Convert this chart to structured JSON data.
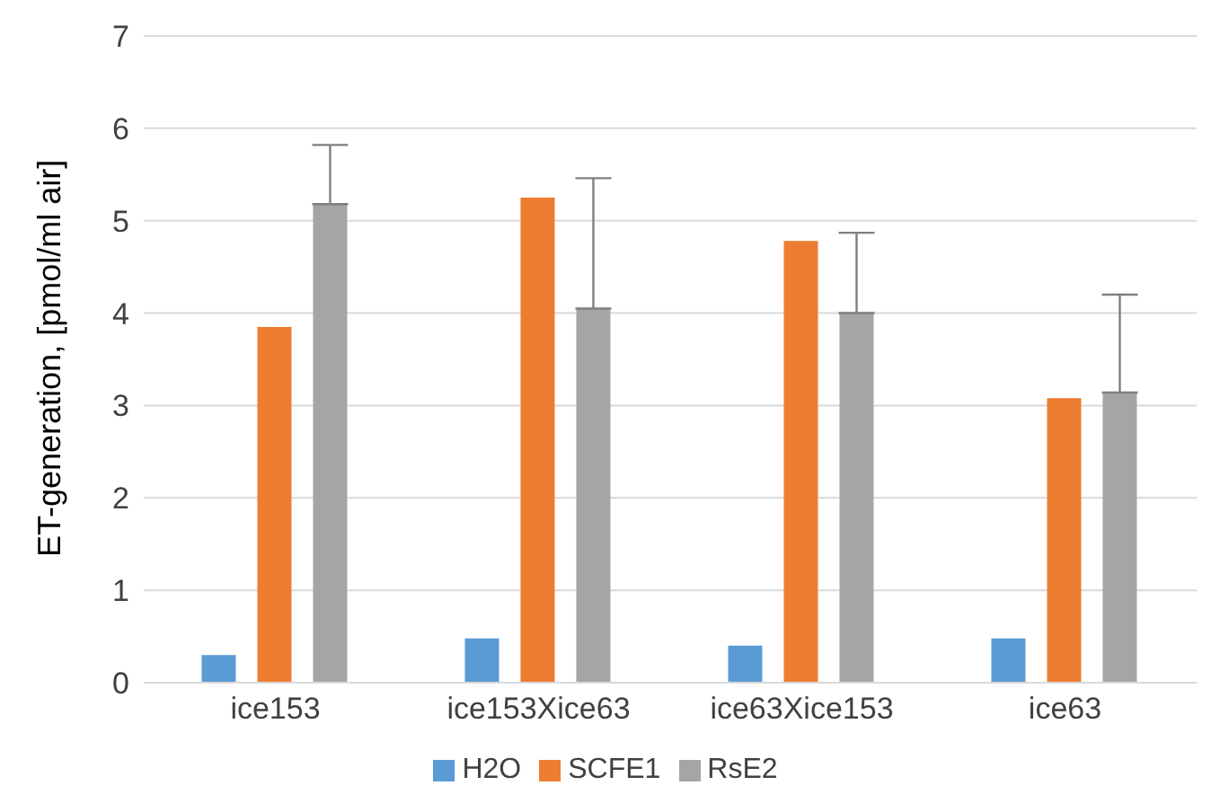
{
  "chart_data": {
    "type": "bar",
    "ylabel": "ET-generation, [pmol/ml air]",
    "categories": [
      "ice153",
      "ice153Xice63",
      "ice63Xice153",
      "ice63"
    ],
    "series": [
      {
        "name": "H2O",
        "color": "#5b9bd5",
        "values": [
          0.3,
          0.48,
          0.4,
          0.48
        ]
      },
      {
        "name": "SCFE1",
        "color": "#ed7d31",
        "values": [
          3.85,
          5.25,
          4.78,
          3.08
        ]
      },
      {
        "name": "RsE2",
        "color": "#a5a5a5",
        "values": [
          5.18,
          4.05,
          4.0,
          3.14
        ],
        "errors": [
          [
            5.18,
            5.82
          ],
          [
            4.05,
            5.46
          ],
          [
            4.0,
            4.87
          ],
          [
            3.14,
            4.2
          ]
        ]
      }
    ],
    "ylim": [
      0,
      7
    ],
    "yticks": [
      0,
      1,
      2,
      3,
      4,
      5,
      6,
      7
    ],
    "grid": "y",
    "legend": "bottom"
  }
}
